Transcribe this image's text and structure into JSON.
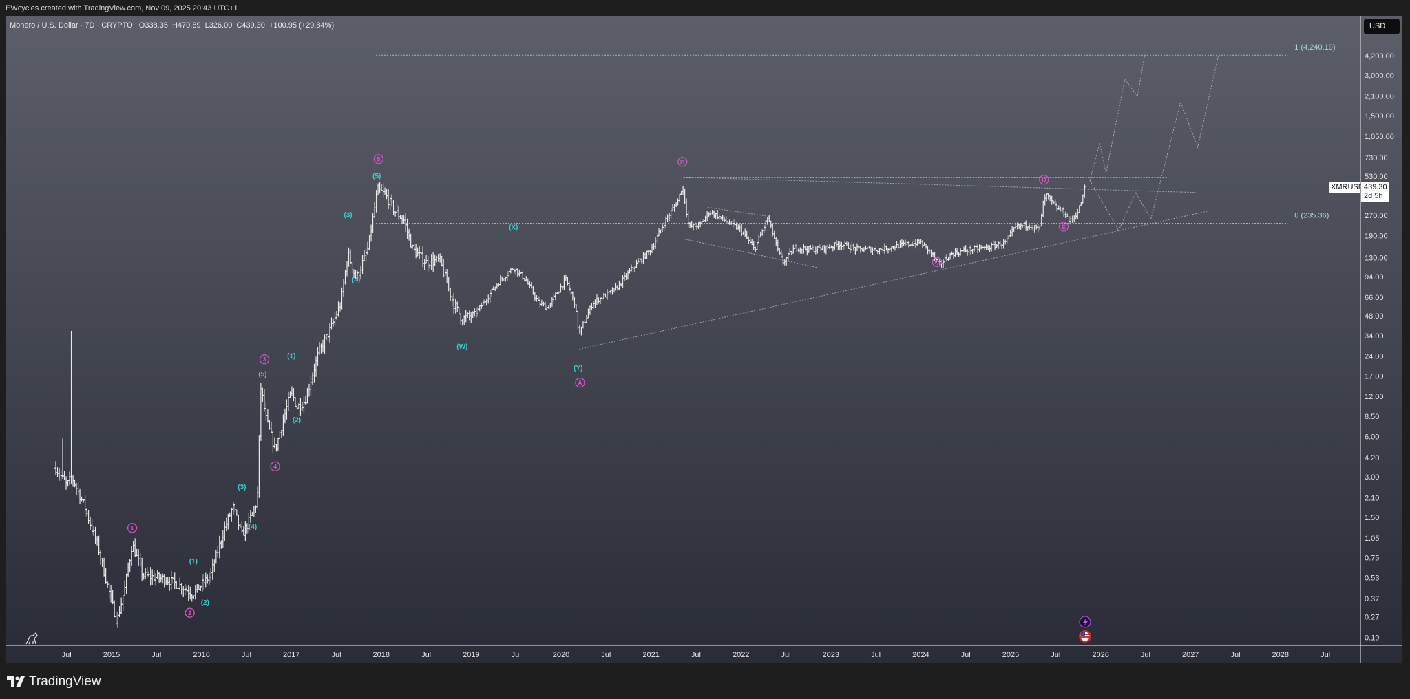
{
  "credit": "EWcycles created with TradingView.com, Nov 09, 2025 20:43 UTC+1",
  "legend": {
    "symbol": "Monero / U.S. Dollar · 7D · CRYPTO",
    "open": "O338.35",
    "high": "H470.89",
    "low": "L326.00",
    "close": "C439.30",
    "change": "+100.95 (+29.84%)"
  },
  "currency_button": "USD",
  "last_price": {
    "ticker": "XMRUSD",
    "price": "439.30",
    "countdown": "2d 5h",
    "value": 439.3
  },
  "footer_brand": "TradingView",
  "colors": {
    "bars": "#e8e8e8",
    "wave_major": "#d84fc8",
    "wave_minor": "#2fd3cf",
    "fib": "#a9d4da",
    "drawing": "#cfcfcf"
  },
  "chart_data": {
    "type": "ohlc-bar",
    "symbol": "XMRUSD",
    "interval": "7D",
    "yscale": "log",
    "ylim": [
      0.17,
      5000
    ],
    "xlim": [
      2014.2,
      2028.6
    ],
    "y_ticks": [
      "4,200.00",
      "3,000.00",
      "2,100.00",
      "1,500.00",
      "1,050.00",
      "730.00",
      "530.00",
      "270.00",
      "190.00",
      "130.00",
      "94.00",
      "66.00",
      "48.00",
      "34.00",
      "24.00",
      "17.00",
      "12.00",
      "8.50",
      "6.00",
      "4.20",
      "3.00",
      "2.10",
      "1.50",
      "1.05",
      "0.75",
      "0.53",
      "0.37",
      "0.27",
      "0.19"
    ],
    "y_tick_values": [
      4200,
      3000,
      2100,
      1500,
      1050,
      730,
      530,
      270,
      190,
      130,
      94,
      66,
      48,
      34,
      24,
      17,
      12,
      8.5,
      6,
      4.2,
      3,
      2.1,
      1.5,
      1.05,
      0.75,
      0.53,
      0.37,
      0.27,
      0.19
    ],
    "x_ticks": [
      {
        "label": "Jul",
        "t": 2014.5
      },
      {
        "label": "2015",
        "t": 2015
      },
      {
        "label": "Jul",
        "t": 2015.5
      },
      {
        "label": "2016",
        "t": 2016
      },
      {
        "label": "Jul",
        "t": 2016.5
      },
      {
        "label": "2017",
        "t": 2017
      },
      {
        "label": "Jul",
        "t": 2017.5
      },
      {
        "label": "2018",
        "t": 2018
      },
      {
        "label": "Jul",
        "t": 2018.5
      },
      {
        "label": "2019",
        "t": 2019
      },
      {
        "label": "Jul",
        "t": 2019.5
      },
      {
        "label": "2020",
        "t": 2020
      },
      {
        "label": "Jul",
        "t": 2020.5
      },
      {
        "label": "2021",
        "t": 2021
      },
      {
        "label": "Jul",
        "t": 2021.5
      },
      {
        "label": "2022",
        "t": 2022
      },
      {
        "label": "Jul",
        "t": 2022.5
      },
      {
        "label": "2023",
        "t": 2023
      },
      {
        "label": "Jul",
        "t": 2023.5
      },
      {
        "label": "2024",
        "t": 2024
      },
      {
        "label": "Jul",
        "t": 2024.5
      },
      {
        "label": "2025",
        "t": 2025
      },
      {
        "label": "Jul",
        "t": 2025.5
      },
      {
        "label": "2026",
        "t": 2026
      },
      {
        "label": "Jul",
        "t": 2026.5
      },
      {
        "label": "2027",
        "t": 2027
      },
      {
        "label": "Jul",
        "t": 2027.5
      },
      {
        "label": "2028",
        "t": 2028
      },
      {
        "label": "Jul",
        "t": 2028.5
      }
    ],
    "price_path_approx": [
      [
        2014.38,
        3.5
      ],
      [
        2014.5,
        2.6
      ],
      [
        2014.56,
        3.0
      ],
      [
        2014.7,
        1.8
      ],
      [
        2014.85,
        0.9
      ],
      [
        2015.0,
        0.35
      ],
      [
        2015.06,
        0.25
      ],
      [
        2015.15,
        0.45
      ],
      [
        2015.23,
        0.95
      ],
      [
        2015.35,
        0.55
      ],
      [
        2015.6,
        0.52
      ],
      [
        2015.8,
        0.45
      ],
      [
        2015.9,
        0.4
      ],
      [
        2016.1,
        0.55
      ],
      [
        2016.25,
        1.2
      ],
      [
        2016.35,
        1.8
      ],
      [
        2016.45,
        1.1
      ],
      [
        2016.55,
        1.5
      ],
      [
        2016.62,
        2.0
      ],
      [
        2016.66,
        14
      ],
      [
        2016.72,
        8
      ],
      [
        2016.82,
        4.8
      ],
      [
        2016.95,
        10
      ],
      [
        2017.0,
        13
      ],
      [
        2017.06,
        10
      ],
      [
        2017.15,
        11
      ],
      [
        2017.3,
        25
      ],
      [
        2017.45,
        40
      ],
      [
        2017.55,
        60
      ],
      [
        2017.63,
        140
      ],
      [
        2017.72,
        90
      ],
      [
        2017.85,
        150
      ],
      [
        2017.96,
        420
      ],
      [
        2018.05,
        380
      ],
      [
        2018.15,
        290
      ],
      [
        2018.25,
        250
      ],
      [
        2018.35,
        150
      ],
      [
        2018.5,
        120
      ],
      [
        2018.65,
        125
      ],
      [
        2018.8,
        60
      ],
      [
        2018.9,
        45
      ],
      [
        2019.05,
        50
      ],
      [
        2019.3,
        85
      ],
      [
        2019.47,
        110
      ],
      [
        2019.6,
        90
      ],
      [
        2019.75,
        60
      ],
      [
        2019.85,
        55
      ],
      [
        2020.05,
        90
      ],
      [
        2020.15,
        60
      ],
      [
        2020.2,
        35
      ],
      [
        2020.35,
        60
      ],
      [
        2020.6,
        75
      ],
      [
        2020.8,
        110
      ],
      [
        2021.0,
        150
      ],
      [
        2021.15,
        240
      ],
      [
        2021.3,
        350
      ],
      [
        2021.35,
        450
      ],
      [
        2021.42,
        220
      ],
      [
        2021.55,
        230
      ],
      [
        2021.65,
        290
      ],
      [
        2021.85,
        240
      ],
      [
        2022.0,
        210
      ],
      [
        2022.15,
        150
      ],
      [
        2022.3,
        260
      ],
      [
        2022.42,
        140
      ],
      [
        2022.47,
        120
      ],
      [
        2022.6,
        155
      ],
      [
        2022.8,
        150
      ],
      [
        2022.95,
        155
      ],
      [
        2023.1,
        165
      ],
      [
        2023.3,
        150
      ],
      [
        2023.55,
        150
      ],
      [
        2023.75,
        160
      ],
      [
        2024.0,
        170
      ],
      [
        2024.12,
        140
      ],
      [
        2024.2,
        115
      ],
      [
        2024.35,
        140
      ],
      [
        2024.55,
        150
      ],
      [
        2024.75,
        155
      ],
      [
        2024.95,
        170
      ],
      [
        2025.05,
        220
      ],
      [
        2025.2,
        230
      ],
      [
        2025.32,
        210
      ],
      [
        2025.36,
        330
      ],
      [
        2025.4,
        380
      ],
      [
        2025.5,
        310
      ],
      [
        2025.6,
        280
      ],
      [
        2025.66,
        240
      ],
      [
        2025.75,
        290
      ],
      [
        2025.84,
        439.3
      ]
    ],
    "spike_highs": [
      [
        2014.56,
        37
      ],
      [
        2014.45,
        5.8
      ]
    ],
    "wave_labels": [
      {
        "text": "1",
        "style": "major",
        "t": 2015.23,
        "p": 1.25
      },
      {
        "text": "2",
        "style": "major",
        "t": 2015.87,
        "p": 0.29
      },
      {
        "text": "(1)",
        "style": "minor",
        "t": 2015.91,
        "p": 0.71
      },
      {
        "text": "(2)",
        "style": "minor",
        "t": 2016.04,
        "p": 0.35
      },
      {
        "text": "(3)",
        "style": "minor",
        "t": 2016.45,
        "p": 2.55
      },
      {
        "text": "(4)",
        "style": "minor",
        "t": 2016.57,
        "p": 1.28
      },
      {
        "text": "3",
        "style": "major",
        "t": 2016.7,
        "p": 22.7
      },
      {
        "text": "(5)",
        "style": "minor",
        "t": 2016.68,
        "p": 17.7
      },
      {
        "text": "4",
        "style": "major",
        "t": 2016.82,
        "p": 3.6
      },
      {
        "text": "(1)",
        "style": "minor",
        "t": 2017.0,
        "p": 24.3
      },
      {
        "text": "(2)",
        "style": "minor",
        "t": 2017.06,
        "p": 8.1
      },
      {
        "text": "(3)",
        "style": "minor",
        "t": 2017.63,
        "p": 274
      },
      {
        "text": "(4)",
        "style": "minor",
        "t": 2017.72,
        "p": 90
      },
      {
        "text": "5",
        "style": "major",
        "t": 2017.97,
        "p": 710
      },
      {
        "text": "(5)",
        "style": "minor",
        "t": 2017.95,
        "p": 536
      },
      {
        "text": "(W)",
        "style": "minor",
        "t": 2018.9,
        "p": 28.5
      },
      {
        "text": "(X)",
        "style": "minor",
        "t": 2019.47,
        "p": 222
      },
      {
        "text": "(Y)",
        "style": "minor",
        "t": 2020.19,
        "p": 19.7
      },
      {
        "text": "A",
        "style": "major",
        "t": 2020.21,
        "p": 15.2
      },
      {
        "text": "B",
        "style": "major",
        "t": 2021.35,
        "p": 677
      },
      {
        "text": "C",
        "style": "major",
        "t": 2024.18,
        "p": 121
      },
      {
        "text": "D",
        "style": "major",
        "t": 2025.37,
        "p": 498
      },
      {
        "text": "E",
        "style": "major",
        "t": 2025.59,
        "p": 222
      }
    ],
    "fib_levels": [
      {
        "label": "1 (4,240.19)",
        "price": 4240.19,
        "t0": 2017.94,
        "t1": 2028.08
      },
      {
        "label": "0 (235.36)",
        "price": 235.36,
        "t0": 2017.94,
        "t1": 2028.08
      }
    ],
    "trendlines": [
      {
        "name": "triangle-top-horizontal",
        "points": [
          [
            2021.36,
            520
          ],
          [
            2026.74,
            520
          ]
        ]
      },
      {
        "name": "triangle-upper-line",
        "points": [
          [
            2021.36,
            520
          ],
          [
            2027.06,
            400
          ]
        ]
      },
      {
        "name": "triangle-lower-line",
        "points": [
          [
            2020.2,
            27
          ],
          [
            2027.19,
            290
          ]
        ]
      },
      {
        "name": "channel-upper",
        "points": [
          [
            2021.63,
            310
          ],
          [
            2022.31,
            265
          ]
        ]
      },
      {
        "name": "channel-lower",
        "points": [
          [
            2021.36,
            180
          ],
          [
            2022.85,
            110
          ]
        ]
      }
    ],
    "projections": [
      {
        "name": "projection-path-1",
        "points": [
          [
            2025.88,
            493
          ],
          [
            2025.99,
            933
          ],
          [
            2026.06,
            557
          ],
          [
            2026.27,
            2808
          ],
          [
            2026.41,
            2090
          ],
          [
            2026.49,
            4240
          ]
        ]
      },
      {
        "name": "projection-path-2",
        "points": [
          [
            2025.88,
            493
          ],
          [
            2026.2,
            208
          ],
          [
            2026.39,
            397
          ],
          [
            2026.56,
            254
          ],
          [
            2026.89,
            1900
          ],
          [
            2027.08,
            870
          ],
          [
            2027.31,
            4240
          ]
        ]
      }
    ]
  }
}
